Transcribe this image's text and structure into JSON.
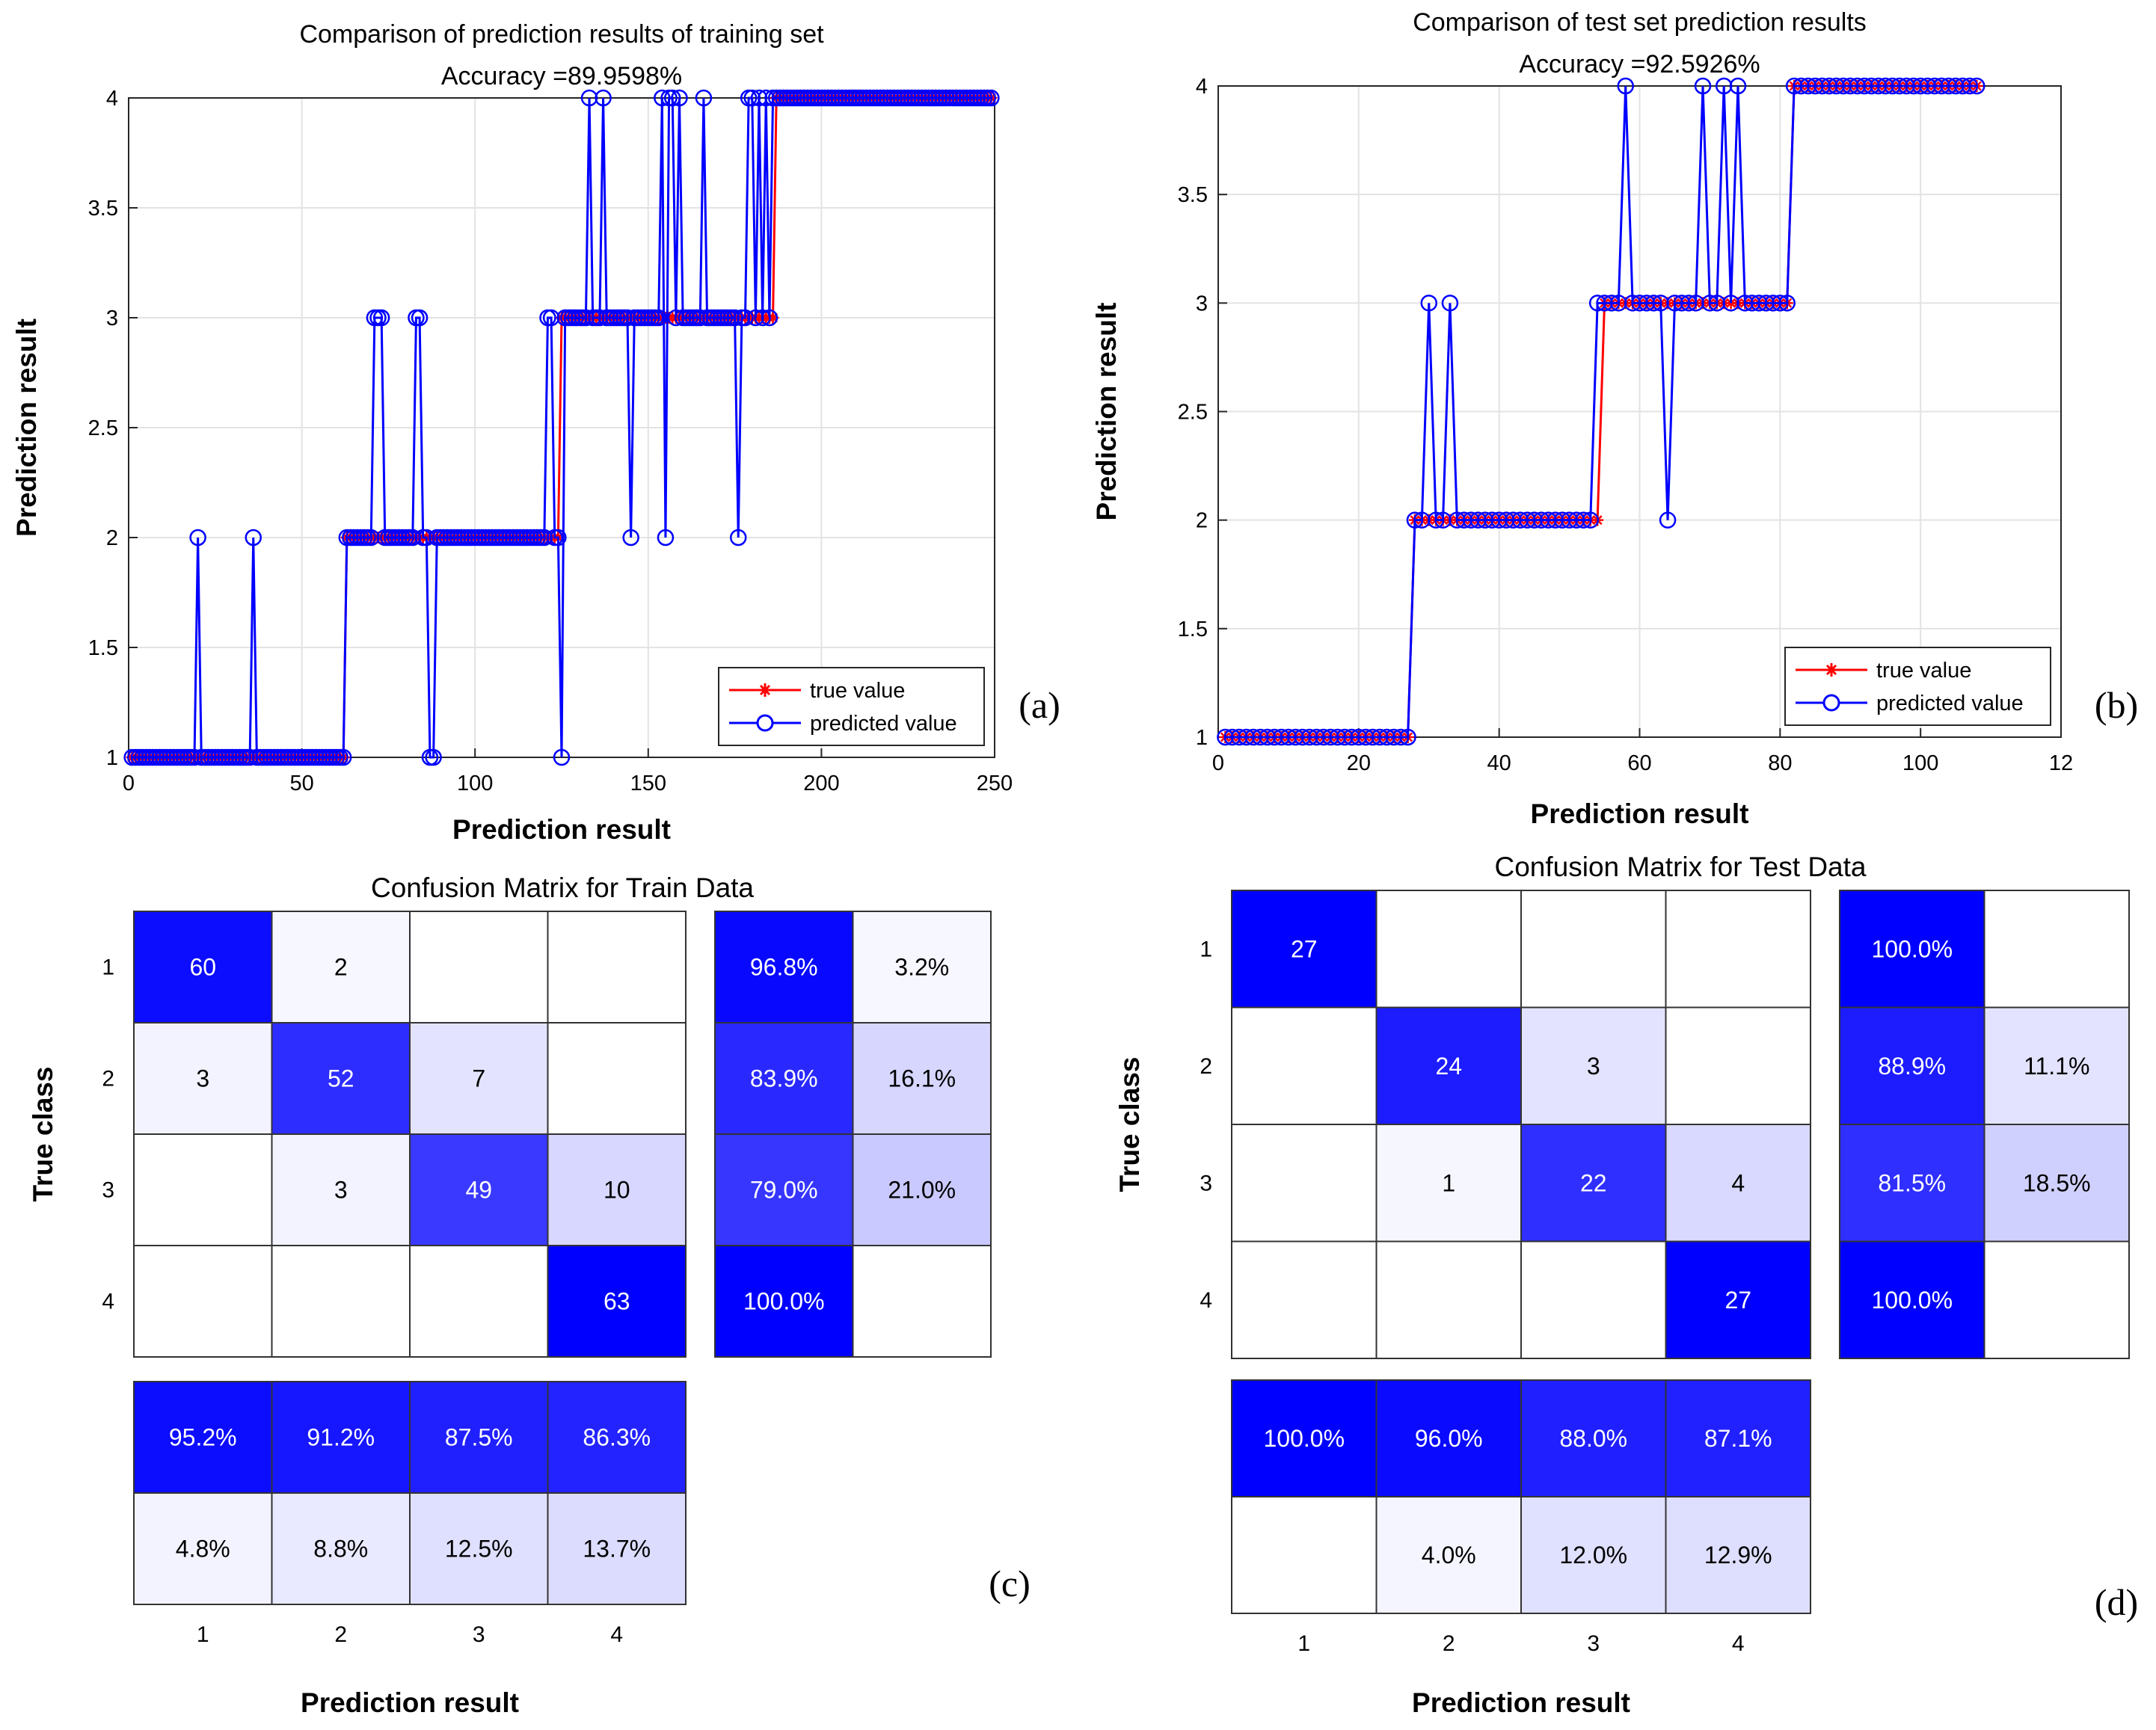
{
  "panels": [
    {
      "type": "line",
      "label": "(a)",
      "title": "Comparison of prediction results of training set",
      "subtitle": "Accuracy =89.9598%",
      "xlabel": "Prediction result",
      "ylabel": "Prediction result",
      "xlim": [
        0,
        250
      ],
      "ylim": [
        1,
        4
      ],
      "xticks": [
        "0",
        "50",
        "100",
        "150",
        "200",
        "250"
      ],
      "yticks": [
        "1",
        "1.5",
        "2",
        "2.5",
        "3",
        "3.5",
        "4"
      ],
      "grid": true,
      "legend": {
        "position": "bottom-right",
        "entries": [
          "true value",
          "predicted value"
        ]
      },
      "series": [
        {
          "name": "true value",
          "color": "#ff0000",
          "marker": "asterisk",
          "segments": [
            [
              1,
              62,
              1
            ],
            [
              63,
              124,
              2
            ],
            [
              125,
              186,
              3
            ],
            [
              187,
              249,
              4
            ]
          ]
        },
        {
          "name": "predicted value",
          "color": "#0000ff",
          "marker": "circle",
          "segments": [
            [
              1,
              62,
              1
            ],
            [
              63,
              124,
              2
            ],
            [
              125,
              186,
              3
            ],
            [
              187,
              249,
              4
            ]
          ],
          "overrides": [
            [
              20,
              2
            ],
            [
              36,
              2
            ],
            [
              71,
              3
            ],
            [
              72,
              3
            ],
            [
              73,
              3
            ],
            [
              83,
              3
            ],
            [
              84,
              3
            ],
            [
              87,
              1
            ],
            [
              88,
              1
            ],
            [
              121,
              3
            ],
            [
              122,
              3
            ],
            [
              125,
              1
            ],
            [
              133,
              4
            ],
            [
              137,
              4
            ],
            [
              145,
              2
            ],
            [
              154,
              4
            ],
            [
              155,
              2
            ],
            [
              156,
              4
            ],
            [
              157,
              4
            ],
            [
              159,
              4
            ],
            [
              166,
              4
            ],
            [
              176,
              2
            ],
            [
              179,
              4
            ],
            [
              180,
              4
            ],
            [
              182,
              4
            ],
            [
              184,
              4
            ],
            [
              186,
              4
            ]
          ]
        }
      ]
    },
    {
      "type": "line",
      "label": "(b)",
      "title": "Comparison of test set prediction results",
      "subtitle": "Accuracy =92.5926%",
      "xlabel": "Prediction result",
      "ylabel": "Prediction result",
      "xlim": [
        0,
        120
      ],
      "ylim": [
        1,
        4
      ],
      "xticks": [
        "0",
        "20",
        "40",
        "60",
        "80",
        "100",
        "12"
      ],
      "yticks": [
        "1",
        "1.5",
        "2",
        "2.5",
        "3",
        "3.5",
        "4"
      ],
      "grid": true,
      "legend": {
        "position": "bottom-right",
        "entries": [
          "true value",
          "predicted value"
        ]
      },
      "series": [
        {
          "name": "true value",
          "color": "#ff0000",
          "marker": "asterisk",
          "segments": [
            [
              1,
              27,
              1
            ],
            [
              28,
              54,
              2
            ],
            [
              55,
              81,
              3
            ],
            [
              82,
              108,
              4
            ]
          ]
        },
        {
          "name": "predicted value",
          "color": "#0000ff",
          "marker": "circle",
          "segments": [
            [
              1,
              27,
              1
            ],
            [
              28,
              54,
              2
            ],
            [
              55,
              81,
              3
            ],
            [
              82,
              108,
              4
            ]
          ],
          "overrides": [
            [
              30,
              3
            ],
            [
              33,
              3
            ],
            [
              54,
              3
            ],
            [
              58,
              4
            ],
            [
              64,
              2
            ],
            [
              69,
              4
            ],
            [
              72,
              4
            ],
            [
              74,
              4
            ]
          ]
        }
      ]
    },
    {
      "type": "heatmap",
      "label": "(c)",
      "title": "Confusion Matrix for Train Data",
      "xlabel": "Prediction result",
      "ylabel": "True class",
      "classes": [
        "1",
        "2",
        "3",
        "4"
      ],
      "matrix": [
        [
          60,
          2,
          0,
          0
        ],
        [
          3,
          52,
          7,
          0
        ],
        [
          0,
          3,
          49,
          10
        ],
        [
          0,
          0,
          0,
          63
        ]
      ],
      "row_summary": [
        [
          "96.8%",
          "3.2%"
        ],
        [
          "83.9%",
          "16.1%"
        ],
        [
          "79.0%",
          "21.0%"
        ],
        [
          "100.0%",
          ""
        ]
      ],
      "column_summary": [
        [
          "95.2%",
          "91.2%",
          "87.5%",
          "86.3%"
        ],
        [
          "4.8%",
          "8.8%",
          "12.5%",
          "13.7%"
        ]
      ]
    },
    {
      "type": "heatmap",
      "label": "(d)",
      "title": "Confusion Matrix for Test Data",
      "xlabel": "Prediction result",
      "ylabel": "True class",
      "classes": [
        "1",
        "2",
        "3",
        "4"
      ],
      "matrix": [
        [
          27,
          0,
          0,
          0
        ],
        [
          0,
          24,
          3,
          0
        ],
        [
          0,
          1,
          22,
          4
        ],
        [
          0,
          0,
          0,
          27
        ]
      ],
      "row_summary": [
        [
          "100.0%",
          ""
        ],
        [
          "88.9%",
          "11.1%"
        ],
        [
          "81.5%",
          "18.5%"
        ],
        [
          "100.0%",
          ""
        ]
      ],
      "column_summary": [
        [
          "100.0%",
          "96.0%",
          "88.0%",
          "87.1%"
        ],
        [
          "",
          "4.0%",
          "12.0%",
          "12.9%"
        ]
      ]
    }
  ]
}
